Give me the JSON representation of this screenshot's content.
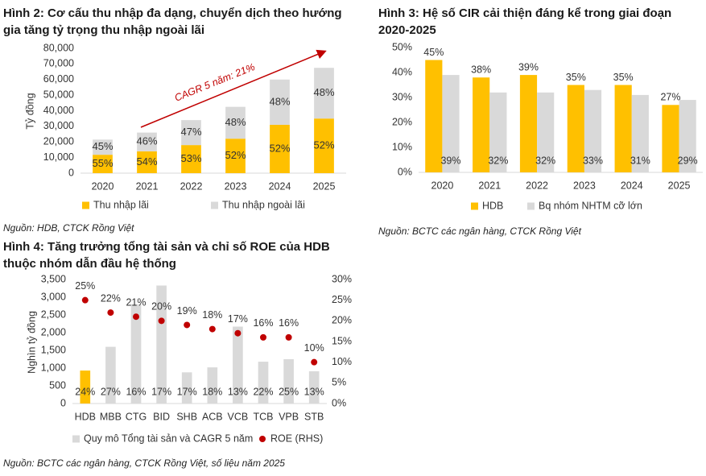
{
  "chart_data": [
    {
      "type": "bar",
      "stacked": true,
      "title": "Hình 2: Cơ cấu thu nhập đa dạng, chuyển dịch theo hướng gia tăng tỷ trọng thu nhập ngoài lãi",
      "ylabel": "Tỷ đồng",
      "categories": [
        "2020",
        "2021",
        "2022",
        "2023",
        "2024",
        "2025"
      ],
      "series": [
        {
          "name": "Thu nhập lãi",
          "color": "#FFC000",
          "values": [
            11800,
            14000,
            18000,
            22100,
            31000,
            35000
          ],
          "share_labels": [
            "55%",
            "54%",
            "53%",
            "52%",
            "52%",
            "52%"
          ]
        },
        {
          "name": "Thu nhập ngoài lãi",
          "color": "#D9D9D9",
          "values": [
            9700,
            12000,
            16000,
            20400,
            29000,
            32500
          ],
          "share_labels": [
            "45%",
            "46%",
            "47%",
            "48%",
            "48%",
            "48%"
          ]
        }
      ],
      "ylim": [
        0,
        80000
      ],
      "yticks": [
        0,
        {
          "value": 10000,
          "label": "10,000"
        },
        {
          "value": 20000,
          "label": "20,000"
        },
        {
          "value": 30000,
          "label": "30,000"
        },
        {
          "value": 40000,
          "label": "40,000"
        },
        {
          "value": 50000,
          "label": "50,000"
        },
        {
          "value": 60000,
          "label": "60,000"
        },
        {
          "value": 70000,
          "label": "70,000"
        },
        {
          "value": 80000,
          "label": "80,000"
        }
      ],
      "annotation": "CAGR 5 năm: 21%",
      "legend": "bottom",
      "source": "Nguồn: HDB, CTCK Rồng Việt"
    },
    {
      "type": "bar",
      "stacked": false,
      "title": "Hình 3: Hệ số CIR cải thiện đáng kể trong giai đoạn 2020-2025",
      "categories": [
        "2020",
        "2021",
        "2022",
        "2023",
        "2024",
        "2025"
      ],
      "series": [
        {
          "name": "HDB",
          "color": "#FFC000",
          "values": [
            45,
            38,
            39,
            35,
            35,
            27
          ],
          "value_labels": [
            "45%",
            "38%",
            "39%",
            "35%",
            "35%",
            "27%"
          ]
        },
        {
          "name": "Bq nhóm NHTM cỡ lớn",
          "color": "#D9D9D9",
          "values": [
            39,
            32,
            32,
            33,
            31,
            29
          ],
          "value_labels": [
            "39%",
            "32%",
            "32%",
            "33%",
            "31%",
            "29%"
          ]
        }
      ],
      "ylim": [
        0,
        50
      ],
      "yticks": [
        {
          "value": 0,
          "label": "0%"
        },
        {
          "value": 10,
          "label": "10%"
        },
        {
          "value": 20,
          "label": "20%"
        },
        {
          "value": 30,
          "label": "30%"
        },
        {
          "value": 40,
          "label": "40%"
        },
        {
          "value": 50,
          "label": "50%"
        }
      ],
      "legend": "bottom",
      "source": "Nguồn: BCTC các ngân hàng, CTCK Rồng Việt"
    },
    {
      "type": "combo",
      "title": "Hình 4: Tăng trưởng tổng tài sản và chỉ số ROE của HDB thuộc nhóm dẫn đầu hệ thống",
      "ylabel": "Nghìn tỷ đồng",
      "categories": [
        "HDB",
        "MBB",
        "CTG",
        "BID",
        "SHB",
        "ACB",
        "VCB",
        "TCB",
        "VPB",
        "STB"
      ],
      "series": [
        {
          "name": "Quy mô Tổng tài sản và CAGR 5 năm",
          "color": "#D9D9D9",
          "colors": [
            "#FFC000",
            "#D9D9D9",
            "#D9D9D9",
            "#D9D9D9",
            "#D9D9D9",
            "#D9D9D9",
            "#D9D9D9",
            "#D9D9D9",
            "#D9D9D9",
            "#D9D9D9"
          ],
          "values": [
            930,
            1600,
            2800,
            3330,
            880,
            1020,
            2170,
            1180,
            1250,
            910
          ],
          "cagr_labels": [
            "24%",
            "27%",
            "16%",
            "17%",
            "17%",
            "18%",
            "13%",
            "22%",
            "25%",
            "13%"
          ]
        },
        {
          "name": "ROE (RHS)",
          "color": "#C00000",
          "axis": "y2",
          "values": [
            25,
            22,
            21,
            20,
            19,
            18,
            17,
            16,
            16,
            10
          ],
          "value_labels": [
            "25%",
            "22%",
            "21%",
            "20%",
            "19%",
            "18%",
            "17%",
            "16%",
            "16%",
            "10%"
          ]
        }
      ],
      "ylim": [
        0,
        3500
      ],
      "yticks": [
        0,
        500,
        {
          "value": 1000,
          "label": "1,000"
        },
        {
          "value": 1500,
          "label": "1,500"
        },
        {
          "value": 2000,
          "label": "2,000"
        },
        {
          "value": 2500,
          "label": "2,500"
        },
        {
          "value": 3000,
          "label": "3,000"
        },
        {
          "value": 3500,
          "label": "3,500"
        }
      ],
      "y2lim": [
        0,
        30
      ],
      "y2ticks": [
        {
          "value": 0,
          "label": "0%"
        },
        {
          "value": 5,
          "label": "5%"
        },
        {
          "value": 10,
          "label": "10%"
        },
        {
          "value": 15,
          "label": "15%"
        },
        {
          "value": 20,
          "label": "20%"
        },
        {
          "value": 25,
          "label": "25%"
        },
        {
          "value": 30,
          "label": "30%"
        }
      ],
      "legend": "bottom",
      "source": "Nguồn: BCTC các ngân hàng, CTCK Rồng Việt, số liệu năm 2025"
    }
  ]
}
